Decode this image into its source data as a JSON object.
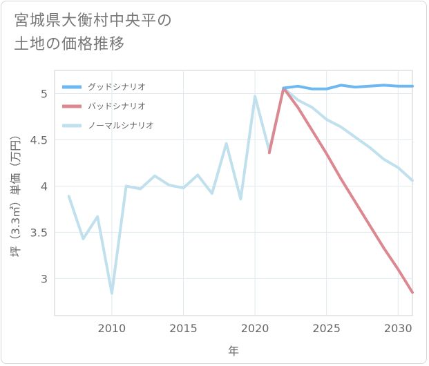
{
  "title": {
    "line1": "宮城県大衡村中央平の",
    "line2": "土地の価格推移"
  },
  "chart_data": {
    "type": "line",
    "title": "宮城県大衡村中央平の土地の価格推移",
    "xlabel": "年",
    "ylabel": "坪（3.3㎡）単価（万円）",
    "xlim": [
      2006,
      2031
    ],
    "ylim": [
      2.6,
      5.25
    ],
    "x_ticks": [
      2010,
      2015,
      2020,
      2025,
      2030
    ],
    "y_ticks": [
      3,
      3.5,
      4,
      4.5,
      5
    ],
    "x_tick_labels": [
      "2010",
      "2015",
      "2020",
      "2025",
      "2030"
    ],
    "y_tick_labels": [
      "3",
      "3.5",
      "4",
      "4.5",
      "5"
    ],
    "legend_position": "top-left",
    "series": [
      {
        "name": "グッドシナリオ",
        "color": "#6db8f0",
        "x": [
          2022,
          2023,
          2024,
          2025,
          2026,
          2027,
          2028,
          2029,
          2030,
          2031
        ],
        "values": [
          5.06,
          5.08,
          5.05,
          5.05,
          5.09,
          5.07,
          5.08,
          5.09,
          5.08,
          5.08
        ]
      },
      {
        "name": "バッドシナリオ",
        "color": "#dc8890",
        "x": [
          2021,
          2022,
          2023,
          2024,
          2025,
          2026,
          2027,
          2028,
          2029,
          2030,
          2031
        ],
        "values": [
          4.36,
          5.06,
          4.85,
          4.6,
          4.35,
          4.08,
          3.83,
          3.58,
          3.33,
          3.1,
          2.85
        ]
      },
      {
        "name": "ノーマルシナリオ",
        "color": "#bfe0ec",
        "x": [
          2007,
          2008,
          2009,
          2010,
          2011,
          2012,
          2013,
          2014,
          2015,
          2016,
          2017,
          2018,
          2019,
          2020,
          2021,
          2022,
          2023,
          2024,
          2025,
          2026,
          2027,
          2028,
          2029,
          2030,
          2031
        ],
        "values": [
          3.89,
          3.43,
          3.67,
          2.84,
          4.0,
          3.97,
          4.11,
          4.01,
          3.98,
          4.12,
          3.92,
          4.46,
          3.86,
          4.97,
          4.38,
          5.06,
          4.93,
          4.85,
          4.72,
          4.64,
          4.53,
          4.42,
          4.29,
          4.2,
          4.06
        ]
      }
    ]
  }
}
